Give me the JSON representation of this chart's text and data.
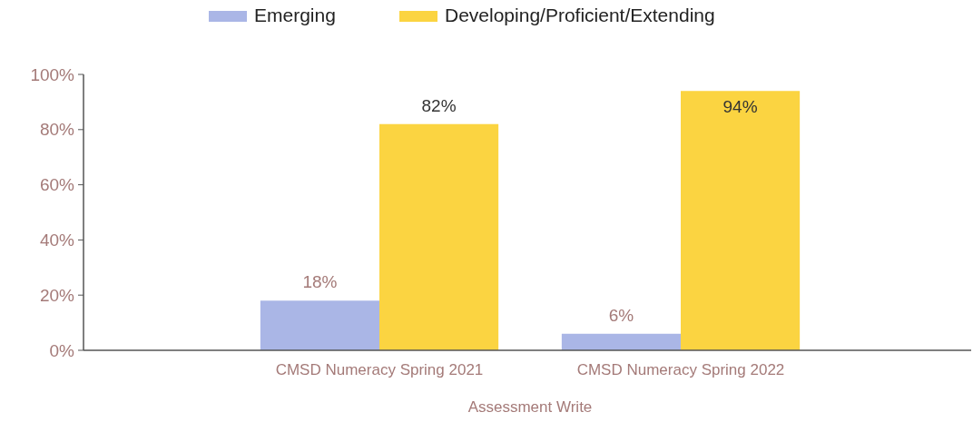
{
  "chart_data": {
    "type": "bar",
    "xlabel": "Assessment Write",
    "categories": [
      "CMSD Numeracy Spring 2021",
      "CMSD Numeracy Spring 2022"
    ],
    "series": [
      {
        "name": "Emerging",
        "color": "#aab6e6",
        "values": [
          18,
          6
        ],
        "value_labels": [
          "18%",
          "6%"
        ]
      },
      {
        "name": "Developing/Proficient/Extending",
        "color": "#fbd441",
        "values": [
          82,
          94
        ],
        "value_labels": [
          "82%",
          "94%"
        ]
      }
    ],
    "ylim": [
      0,
      100
    ],
    "yticks": [
      {
        "value": 0,
        "label": "0%"
      },
      {
        "value": 20,
        "label": "20%"
      },
      {
        "value": 40,
        "label": "40%"
      },
      {
        "value": 60,
        "label": "60%"
      },
      {
        "value": 80,
        "label": "80%"
      },
      {
        "value": 100,
        "label": "100%"
      }
    ],
    "grid": false,
    "legend": "top"
  }
}
